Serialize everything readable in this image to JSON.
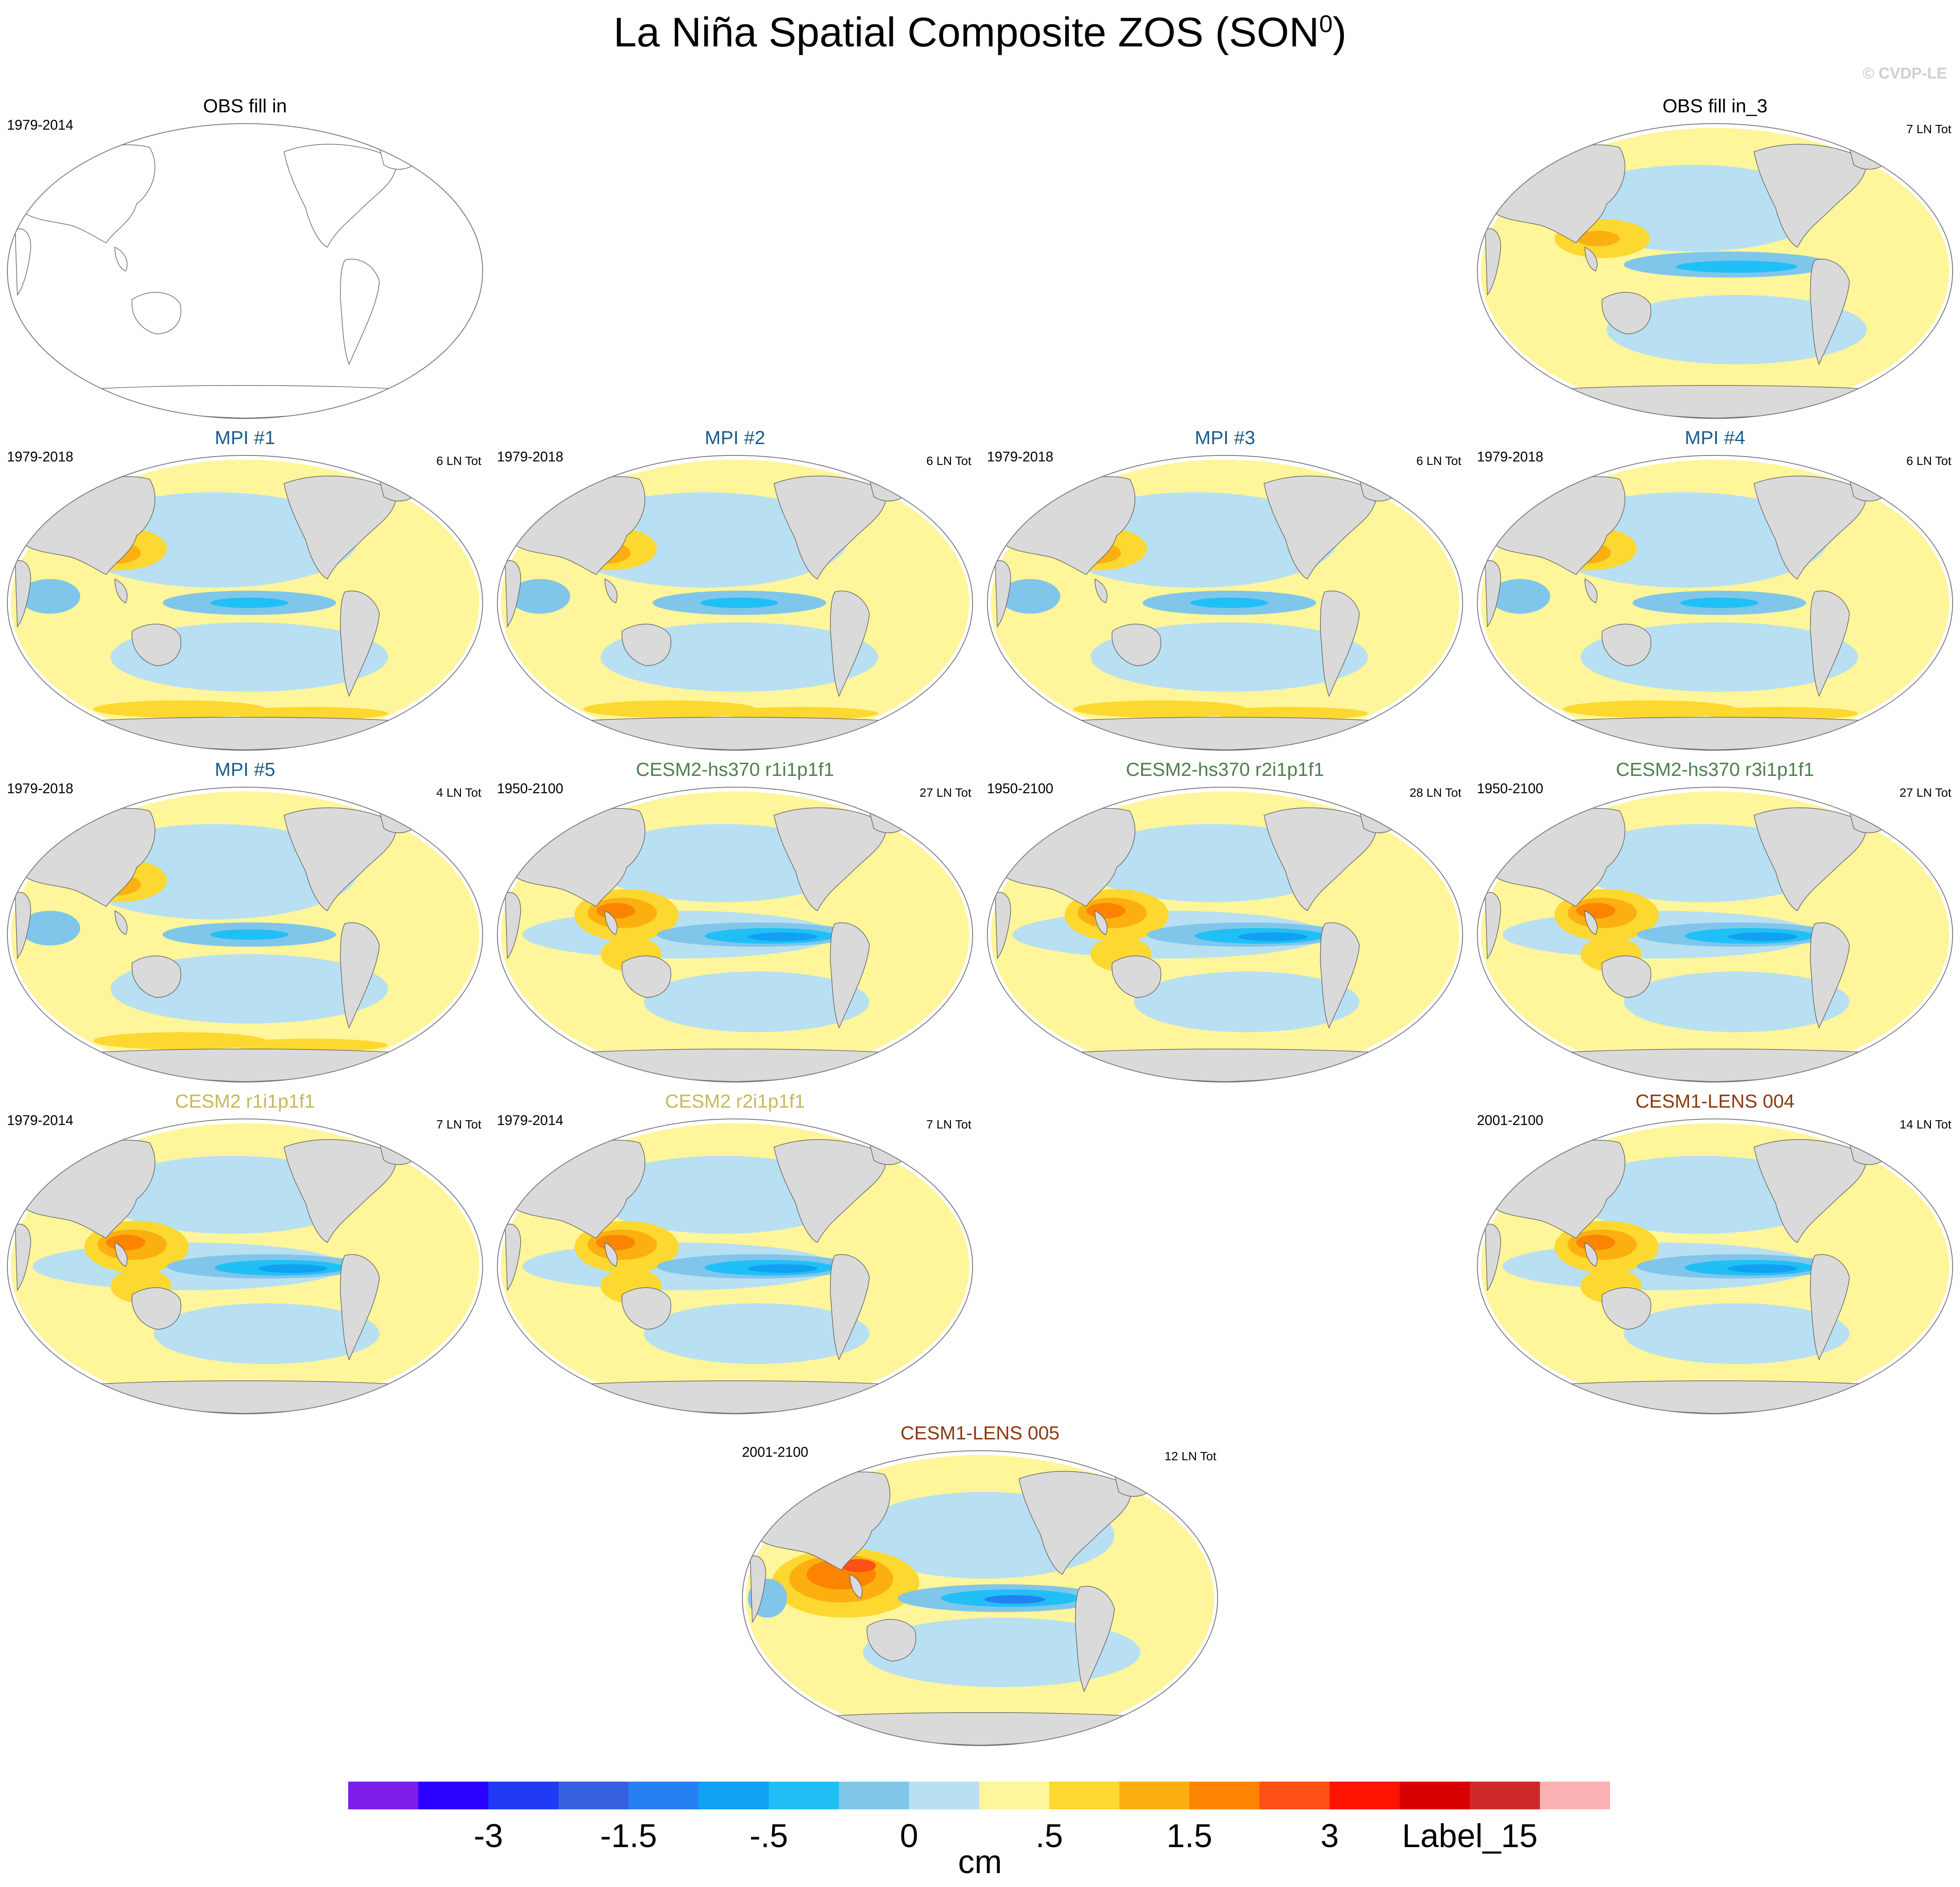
{
  "figure": {
    "title": "La Niña Spatial Composite ZOS (SON",
    "title_sup": "0",
    "title_close": ")",
    "copyright": "© CVDP-LE"
  },
  "panels": [
    {
      "id": "obs",
      "title": "OBS fill in",
      "years": "1979-2014",
      "count": "",
      "title_color": "#000000",
      "style": "blank",
      "pattern": "none"
    },
    {
      "id": "obs3",
      "title": "OBS fill in_3",
      "years": "",
      "count": "7 LN Tot",
      "title_color": "#000000",
      "style": "filled",
      "pattern": "obs"
    },
    {
      "id": "mpi1",
      "title": "MPI #1",
      "years": "1979-2018",
      "count": "6 LN Tot",
      "title_color": "#1a5c8c",
      "style": "filled",
      "pattern": "mpi"
    },
    {
      "id": "mpi2",
      "title": "MPI #2",
      "years": "1979-2018",
      "count": "6 LN Tot",
      "title_color": "#1a5c8c",
      "style": "filled",
      "pattern": "mpi"
    },
    {
      "id": "mpi3",
      "title": "MPI #3",
      "years": "1979-2018",
      "count": "6 LN Tot",
      "title_color": "#1a5c8c",
      "style": "filled",
      "pattern": "mpi"
    },
    {
      "id": "mpi4",
      "title": "MPI #4",
      "years": "1979-2018",
      "count": "6 LN Tot",
      "title_color": "#1a5c8c",
      "style": "filled",
      "pattern": "mpi"
    },
    {
      "id": "mpi5",
      "title": "MPI #5",
      "years": "1979-2018",
      "count": "4 LN Tot",
      "title_color": "#1a5c8c",
      "style": "filled",
      "pattern": "mpi"
    },
    {
      "id": "hs1",
      "title": "CESM2-hs370 r1i1p1f1",
      "years": "1950-2100",
      "count": "27 LN Tot",
      "title_color": "#4f7f4f",
      "style": "filled",
      "pattern": "cesm"
    },
    {
      "id": "hs2",
      "title": "CESM2-hs370 r2i1p1f1",
      "years": "1950-2100",
      "count": "28 LN Tot",
      "title_color": "#4f7f4f",
      "style": "filled",
      "pattern": "cesm"
    },
    {
      "id": "hs3",
      "title": "CESM2-hs370 r3i1p1f1",
      "years": "1950-2100",
      "count": "27 LN Tot",
      "title_color": "#4f7f4f",
      "style": "filled",
      "pattern": "cesm"
    },
    {
      "id": "c2r1",
      "title": "CESM2 r1i1p1f1",
      "years": "1979-2014",
      "count": "7 LN Tot",
      "title_color": "#c8b85a",
      "style": "filled",
      "pattern": "cesm"
    },
    {
      "id": "c2r2",
      "title": "CESM2 r2i1p1f1",
      "years": "1979-2014",
      "count": "7 LN Tot",
      "title_color": "#c8b85a",
      "style": "filled",
      "pattern": "cesm"
    },
    {
      "id": "l004",
      "title": "CESM1-LENS 004",
      "years": "2001-2100",
      "count": "14 LN Tot",
      "title_color": "#8b3a0f",
      "style": "filled",
      "pattern": "cesm"
    },
    {
      "id": "l005",
      "title": "CESM1-LENS 005",
      "years": "2001-2100",
      "count": "12 LN Tot",
      "title_color": "#8b3a0f",
      "style": "filled",
      "pattern": "lens5"
    }
  ],
  "colorbar": {
    "colors": [
      "#7d1de8",
      "#2a00ff",
      "#1f3af2",
      "#3560de",
      "#2580f2",
      "#12a0f2",
      "#20c0f6",
      "#80c6ea",
      "#b8e0f2",
      "#fff59a",
      "#fcd830",
      "#fcb010",
      "#fc8400",
      "#fc5014",
      "#fc1400",
      "#d80000",
      "#d02828",
      "#fcb2b2"
    ],
    "labels": [
      {
        "text": "-3",
        "edge": 2
      },
      {
        "text": "-1.5",
        "edge": 4
      },
      {
        "text": "-.5",
        "edge": 6
      },
      {
        "text": "0",
        "edge": 8
      },
      {
        "text": ".5",
        "edge": 10
      },
      {
        "text": "1.5",
        "edge": 12
      },
      {
        "text": "3",
        "edge": 14
      },
      {
        "text": "Label_15",
        "edge": 16
      }
    ],
    "units": "cm"
  }
}
